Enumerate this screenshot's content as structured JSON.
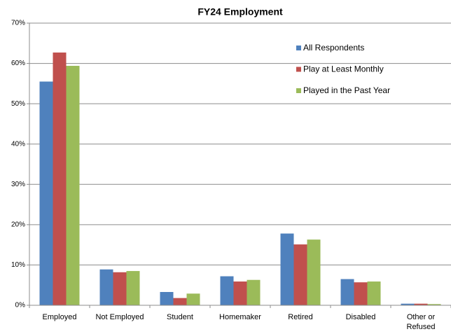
{
  "chart_data": {
    "type": "bar",
    "title": "FY24 Employment",
    "categories": [
      "Employed",
      "Not Employed",
      "Student",
      "Homemaker",
      "Retired",
      "Disabled",
      "Other or Refused"
    ],
    "series": [
      {
        "name": "All Respondents",
        "color": "#4f81bd",
        "values": [
          55.5,
          8.9,
          3.3,
          7.2,
          17.8,
          6.5,
          0.4
        ]
      },
      {
        "name": "Play at Least Monthly",
        "color": "#c0504d",
        "values": [
          62.7,
          8.2,
          1.8,
          5.9,
          15.1,
          5.7,
          0.4
        ]
      },
      {
        "name": "Played in the Past Year",
        "color": "#9bbb59",
        "values": [
          59.4,
          8.5,
          2.9,
          6.3,
          16.3,
          5.9,
          0.3
        ]
      }
    ],
    "ylim": [
      0,
      70
    ],
    "yticks": [
      {
        "value": 0,
        "label": "0%"
      },
      {
        "value": 10,
        "label": "10%"
      },
      {
        "value": 20,
        "label": "20%"
      },
      {
        "value": 30,
        "label": "30%"
      },
      {
        "value": 40,
        "label": "40%"
      },
      {
        "value": 50,
        "label": "50%"
      },
      {
        "value": 60,
        "label": "60%"
      },
      {
        "value": 70,
        "label": "70%"
      }
    ],
    "grid": true,
    "legend": "top-right"
  }
}
